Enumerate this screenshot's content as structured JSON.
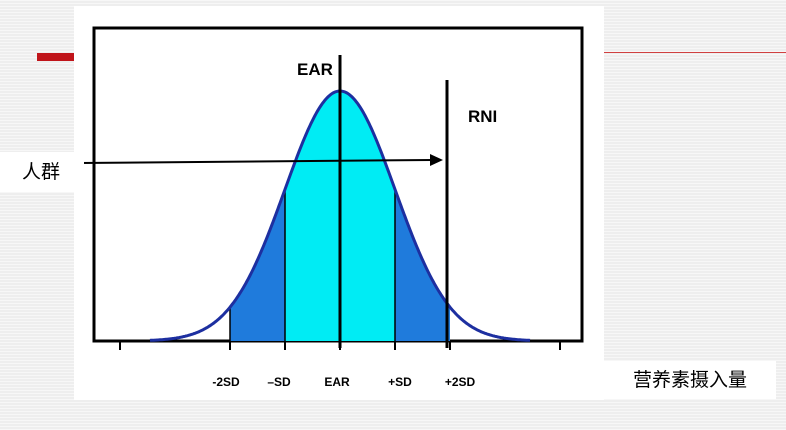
{
  "colors": {
    "tail_fill": "#1f7bdc",
    "center_fill": "#00ecf4",
    "curve_stroke": "#1d2fa0",
    "accent_red": "#c0141a"
  },
  "labels": {
    "ear_top": "EAR",
    "rni_top": "RNI",
    "crowd": "人群",
    "axis_title": "营养素摄入量"
  },
  "ticks": [
    "-2SD",
    "–SD",
    "EAR",
    "+SD",
    "+2SD"
  ]
}
